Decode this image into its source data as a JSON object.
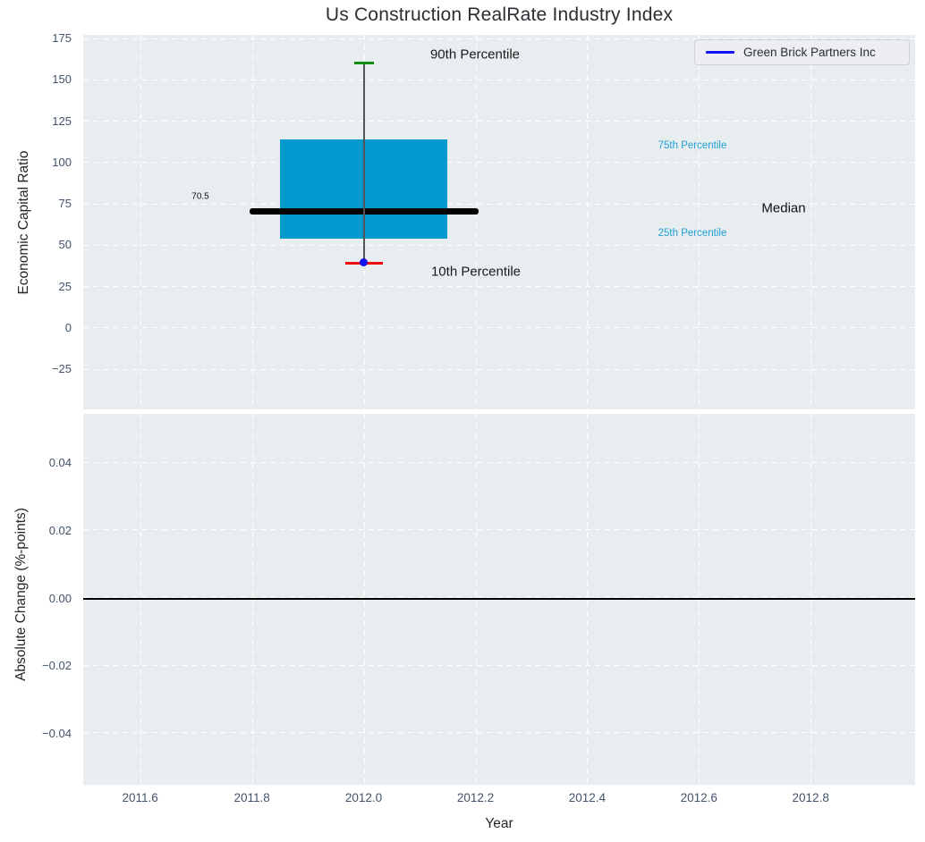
{
  "title": "Us Construction RealRate Industry Index",
  "legend": {
    "series_label": "Green Brick Partners Inc",
    "line_color": "#1212F2"
  },
  "colors": {
    "plot_bg": "#E8EDEF",
    "grid": "#FFFFFF",
    "tick_label": "#42536A",
    "box_fill": "#0099CE",
    "median_line": "#000000",
    "whisker": "#555555",
    "p90_cap": "#0A8F0A",
    "p10_cap": "#F20D0D",
    "company_marker": "#1212F2",
    "percentile_text": "#1F9FD6",
    "annotation_text": "#1A1A1A",
    "zero_line": "#000000"
  },
  "chart_data": {
    "shared_x": {
      "xlabel": "Year",
      "xticks": [
        "2011.6",
        "2011.8",
        "2012.0",
        "2012.2",
        "2012.4",
        "2012.6",
        "2012.8"
      ],
      "xtick_values": [
        2011.6,
        2011.8,
        2012.0,
        2012.2,
        2012.4,
        2012.6,
        2012.8
      ],
      "xlim": [
        2011.5,
        2012.99
      ]
    },
    "charts": [
      {
        "id": "economic-capital-ratio",
        "type": "box",
        "title": "Us Construction RealRate Industry Index",
        "ylabel": "Economic Capital Ratio",
        "yticks": [
          "175",
          "150",
          "125",
          "100",
          "75",
          "50",
          "25",
          "0",
          "−25"
        ],
        "ytick_values": [
          175,
          150,
          125,
          100,
          75,
          50,
          25,
          0,
          -25
        ],
        "ylim": [
          -49.5,
          177
        ],
        "grid": "dashed-white",
        "box": {
          "x": 2012.0,
          "p90": 160,
          "p75": 114,
          "median": 70.5,
          "p25": 53.5,
          "p10": 39,
          "median_label": "70.5",
          "box_span_years": [
            2011.85,
            2012.15
          ],
          "median_span_years": [
            2011.795,
            2012.205
          ]
        },
        "company_point": {
          "series": "Green Brick Partners Inc",
          "x": 2012.0,
          "y": 39.5
        },
        "annotations": [
          {
            "id": "p90-label",
            "text": "90th Percentile",
            "color": "#1A1A1A",
            "size": 15
          },
          {
            "id": "p10-label",
            "text": "10th Percentile",
            "color": "#1A1A1A",
            "size": 15
          },
          {
            "id": "p75-label",
            "text": "75th Percentile",
            "color": "#1F9FD6",
            "size": 11.5
          },
          {
            "id": "p25-label",
            "text": "25th Percentile",
            "color": "#1F9FD6",
            "size": 11.5
          },
          {
            "id": "median-label",
            "text": "Median",
            "color": "#111111",
            "size": 15
          },
          {
            "id": "median-value-label",
            "text": "70.5",
            "color": "#111111",
            "size": 10
          }
        ]
      },
      {
        "id": "absolute-change",
        "type": "line",
        "ylabel": "Absolute Change (%-points)",
        "yticks": [
          "0.04",
          "0.02",
          "0.00",
          "−0.02",
          "−0.04"
        ],
        "ytick_values": [
          0.04,
          0.02,
          0.0,
          -0.02,
          -0.04
        ],
        "ylim": [
          -0.0552,
          0.0544
        ],
        "grid": "dashed-white",
        "zero_line_value": 0.0,
        "series": []
      }
    ]
  }
}
